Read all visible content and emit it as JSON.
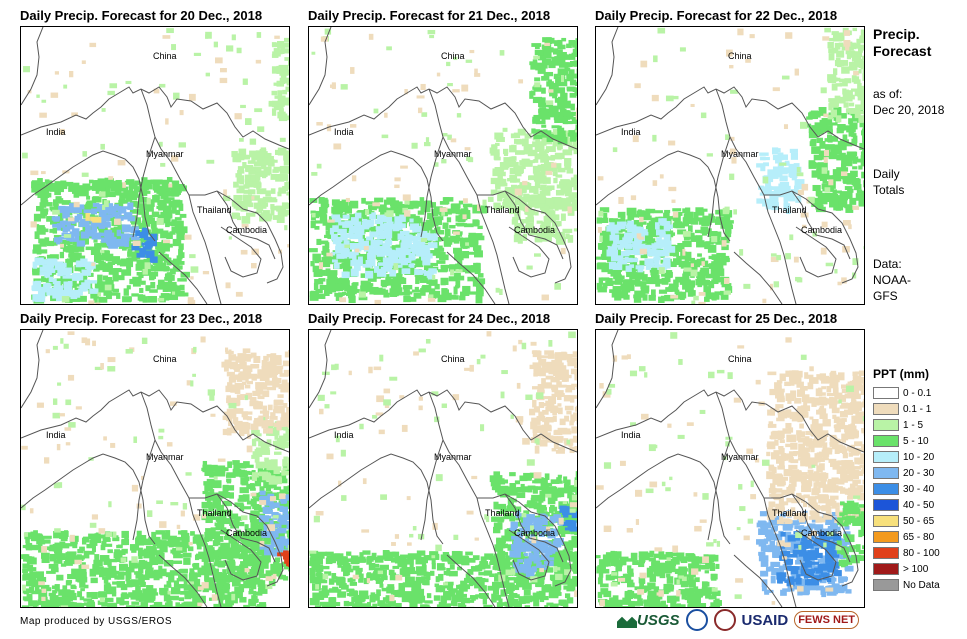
{
  "panels": [
    {
      "title": "Daily Precip. Forecast for 20 Dec., 2018",
      "labels": {
        "china": "China",
        "india": "India",
        "myanmar": "Myanmar",
        "thailand": "Thailand",
        "cambodia": "Cambodia"
      }
    },
    {
      "title": "Daily Precip. Forecast for 21 Dec., 2018",
      "labels": {
        "china": "China",
        "india": "India",
        "myanmar": "Myanmar",
        "thailand": "Thailand",
        "cambodia": "Cambodia"
      }
    },
    {
      "title": "Daily Precip. Forecast for 22 Dec., 2018",
      "labels": {
        "china": "China",
        "india": "India",
        "myanmar": "Myanmar",
        "thailand": "Thailand",
        "cambodia": "Cambodia"
      }
    },
    {
      "title": "Daily Precip. Forecast for 23 Dec., 2018",
      "labels": {
        "china": "China",
        "india": "India",
        "myanmar": "Myanmar",
        "thailand": "Thailand",
        "cambodia": "Cambodia"
      }
    },
    {
      "title": "Daily Precip. Forecast for 24 Dec., 2018",
      "labels": {
        "china": "China",
        "india": "India",
        "myanmar": "Myanmar",
        "thailand": "Thailand",
        "cambodia": "Cambodia"
      }
    },
    {
      "title": "Daily Precip. Forecast for 25 Dec., 2018",
      "labels": {
        "china": "China",
        "india": "India",
        "myanmar": "Myanmar",
        "thailand": "Thailand",
        "cambodia": "Cambodia"
      }
    }
  ],
  "side": {
    "title_line1": "Precip.",
    "title_line2": "Forecast",
    "asof_line1": "as of:",
    "asof_line2": "Dec 20, 2018",
    "totals_line1": "Daily",
    "totals_line2": "Totals",
    "data_line1": "Data:",
    "data_line2": "NOAA-",
    "data_line3": "GFS"
  },
  "legend": {
    "title": "PPT (mm)",
    "items": [
      {
        "label": "0 - 0.1",
        "color": "#ffffff"
      },
      {
        "label": "0.1 - 1",
        "color": "#efdcbc"
      },
      {
        "label": "1 - 5",
        "color": "#b9f3a6"
      },
      {
        "label": "5 - 10",
        "color": "#6ae26a"
      },
      {
        "label": "10 - 20",
        "color": "#b6eefa"
      },
      {
        "label": "20 - 30",
        "color": "#7fb8f0"
      },
      {
        "label": "30 - 40",
        "color": "#3c8ee6"
      },
      {
        "label": "40 - 50",
        "color": "#1c55d8"
      },
      {
        "label": "50 - 65",
        "color": "#f7e07c"
      },
      {
        "label": "65 - 80",
        "color": "#f39a1e"
      },
      {
        "label": "80 - 100",
        "color": "#e0401a"
      },
      {
        "label": "> 100",
        "color": "#a01a1a"
      },
      {
        "label": "No Data",
        "color": "#999999"
      }
    ]
  },
  "credit": "Map produced by USGS/EROS",
  "logos": {
    "usgs": "USGS",
    "usaid": "USAID",
    "fews": "FEWS NET"
  }
}
